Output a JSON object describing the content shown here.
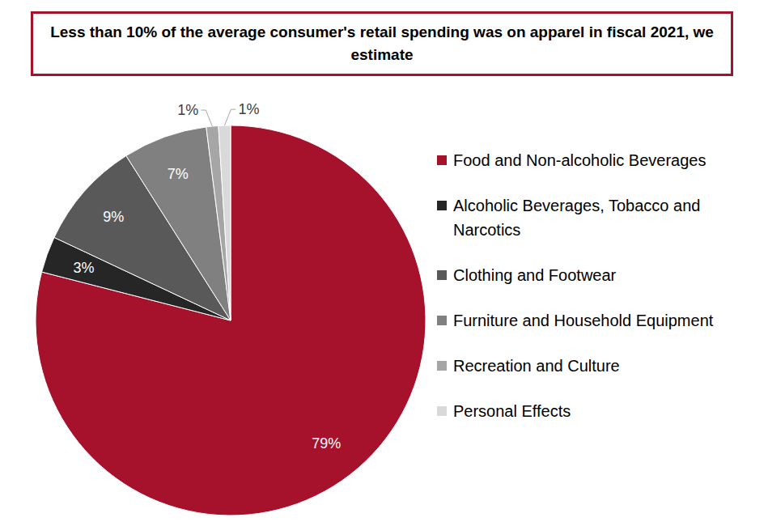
{
  "chart_data": {
    "type": "pie",
    "title": "Less than 10% of the average consumer's retail spending was on apparel in fiscal 2021, we estimate",
    "categories": [
      "Food and Non-alcoholic Beverages",
      "Alcoholic Beverages, Tobacco and Narcotics",
      "Clothing and Footwear",
      "Furniture and Household Equipment",
      "Recreation and Culture",
      "Personal Effects"
    ],
    "values": [
      79,
      3,
      9,
      7,
      1,
      1
    ],
    "value_labels": [
      "79%",
      "3%",
      "9%",
      "7%",
      "1%",
      "1%"
    ],
    "colors": [
      "#a6112b",
      "#262626",
      "#595959",
      "#808080",
      "#a6a6a6",
      "#d9d9d9"
    ],
    "data_labels": true,
    "legend": "right"
  }
}
